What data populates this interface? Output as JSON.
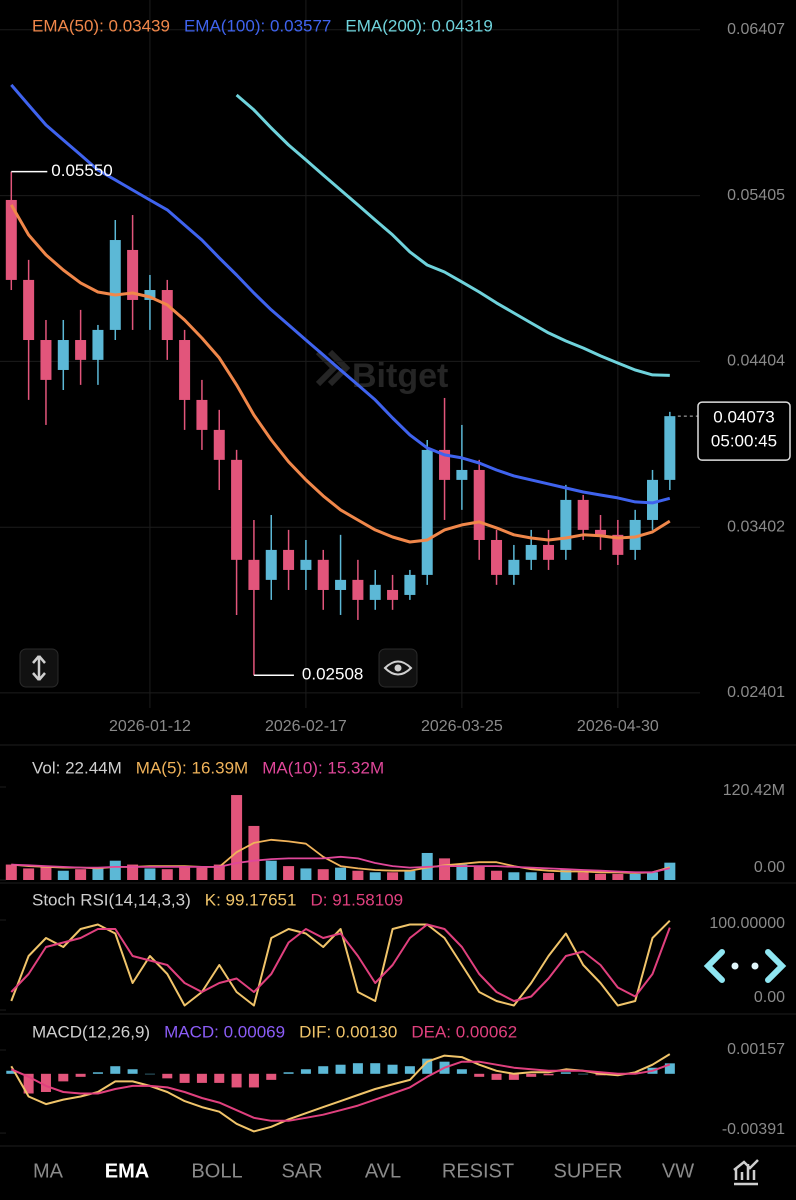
{
  "chart_data": [
    {
      "type": "candlestick",
      "categories": [
        null,
        null,
        null,
        null,
        null,
        null,
        null,
        null,
        "2026-01-12",
        null,
        null,
        null,
        null,
        null,
        null,
        null,
        null,
        "2026-02-17",
        null,
        null,
        null,
        null,
        null,
        null,
        null,
        null,
        "2026-03-25",
        null,
        null,
        null,
        null,
        null,
        null,
        null,
        null,
        "2026-04-30",
        null,
        null,
        null
      ],
      "open": [
        0.05379,
        0.04896,
        0.04533,
        0.04352,
        0.04533,
        0.04413,
        0.04594,
        0.05077,
        0.04775,
        0.04835,
        0.04533,
        0.04171,
        0.0399,
        0.03809,
        0.03205,
        0.03084,
        0.03265,
        0.03144,
        0.03205,
        0.03023,
        0.03084,
        0.02963,
        0.03023,
        0.02993,
        0.03114,
        0.03869,
        0.03688,
        0.03748,
        0.03325,
        0.03114,
        0.03205,
        0.03295,
        0.03265,
        0.03567,
        0.03386,
        0.03356,
        0.03265,
        0.03446,
        0.03688
      ],
      "high": [
        0.0555,
        0.05017,
        0.04654,
        0.04654,
        0.04715,
        0.04624,
        0.05258,
        0.05288,
        0.04926,
        0.04896,
        0.04594,
        0.04292,
        0.04111,
        0.03869,
        0.03446,
        0.03476,
        0.03386,
        0.03325,
        0.03265,
        0.03356,
        0.03205,
        0.03144,
        0.03114,
        0.03144,
        0.03929,
        0.04183,
        0.0402,
        0.03809,
        0.03386,
        0.03295,
        0.03386,
        0.03386,
        0.03658,
        0.03597,
        0.03476,
        0.03446,
        0.03507,
        0.03748,
        0.04099
      ],
      "low": [
        0.04835,
        0.04171,
        0.0402,
        0.04231,
        0.04262,
        0.04262,
        0.04533,
        0.04594,
        0.04594,
        0.04413,
        0.0399,
        0.03869,
        0.03627,
        0.02872,
        0.02508,
        0.02963,
        0.03023,
        0.03023,
        0.02903,
        0.02872,
        0.02842,
        0.02903,
        0.02903,
        0.02963,
        0.03054,
        0.03446,
        0.03507,
        0.03205,
        0.03054,
        0.03054,
        0.03144,
        0.03144,
        0.03205,
        0.03325,
        0.03265,
        0.03174,
        0.03205,
        0.03386,
        0.03627
      ],
      "close": [
        0.04896,
        0.04533,
        0.04292,
        0.04533,
        0.04413,
        0.04594,
        0.05137,
        0.04775,
        0.04835,
        0.04533,
        0.04171,
        0.0399,
        0.03809,
        0.03205,
        0.03023,
        0.03265,
        0.03144,
        0.03205,
        0.03023,
        0.03084,
        0.02963,
        0.03054,
        0.02963,
        0.03114,
        0.03869,
        0.03688,
        0.03748,
        0.03325,
        0.03114,
        0.03205,
        0.03295,
        0.03205,
        0.03567,
        0.03386,
        0.03356,
        0.03235,
        0.03446,
        0.03688,
        0.04073
      ],
      "up_color": "#5cb8d6",
      "down_color": "#e2557b",
      "series": [
        {
          "name": "EMA(50): 0.03439",
          "color": "#f0874a",
          "values": [
            0.05349,
            0.05168,
            0.05047,
            0.04956,
            0.04878,
            0.04823,
            0.04805,
            0.04817,
            0.04793,
            0.04745,
            0.04654,
            0.04545,
            0.04425,
            0.04262,
            0.0408,
            0.03929,
            0.03797,
            0.03688,
            0.03591,
            0.03507,
            0.03446,
            0.03386,
            0.03343,
            0.03313,
            0.03325,
            0.03386,
            0.03416,
            0.03434,
            0.03398,
            0.03356,
            0.03337,
            0.03325,
            0.03337,
            0.03356,
            0.0335,
            0.03337,
            0.03343,
            0.03374,
            0.03439
          ]
        },
        {
          "name": "EMA(100): 0.03577",
          "color": "#3f63ee",
          "values": [
            0.06074,
            0.05953,
            0.05832,
            0.05741,
            0.05651,
            0.0556,
            0.055,
            0.05439,
            0.05379,
            0.05319,
            0.05228,
            0.05137,
            0.05029,
            0.04926,
            0.04817,
            0.04715,
            0.04624,
            0.04533,
            0.04443,
            0.04352,
            0.04262,
            0.04171,
            0.04062,
            0.0396,
            0.03881,
            0.03839,
            0.03821,
            0.0379,
            0.03748,
            0.03712,
            0.03688,
            0.03664,
            0.03639,
            0.03615,
            0.03597,
            0.03579,
            0.03555,
            0.03549,
            0.03577
          ]
        },
        {
          "name": "EMA(200): 0.04319",
          "color": "#6fd3dc",
          "values": [
            null,
            null,
            null,
            null,
            null,
            null,
            null,
            null,
            null,
            null,
            null,
            null,
            null,
            0.06013,
            0.05923,
            0.05814,
            0.05711,
            0.05621,
            0.0553,
            0.05439,
            0.05349,
            0.05258,
            0.05168,
            0.05065,
            0.04986,
            0.04944,
            0.04884,
            0.04823,
            0.04757,
            0.04696,
            0.04636,
            0.04576,
            0.04527,
            0.04485,
            0.04437,
            0.04394,
            0.04352,
            0.04322,
            0.04319
          ]
        }
      ],
      "ylim": [
        0.0231,
        0.06587
      ],
      "yticks": [
        0.06407,
        0.05405,
        0.04404,
        0.03402,
        0.02401
      ],
      "grid": true,
      "extreme_labels": {
        "high": "0.05550",
        "low": "0.02508"
      },
      "last_price": {
        "label": "0.04073",
        "countdown": "05:00:45"
      }
    },
    {
      "type": "bar",
      "title": "Vol: 22.44M",
      "values": [
        20,
        15,
        18,
        12,
        14,
        16,
        25,
        20,
        15,
        14,
        18,
        16,
        20,
        110,
        70,
        25,
        18,
        15,
        14,
        16,
        12,
        10,
        10,
        12,
        35,
        28,
        20,
        18,
        12,
        10,
        10,
        9,
        14,
        10,
        8,
        8,
        8,
        10,
        22.44
      ],
      "series": [
        {
          "name": "MA(5): 16.39M",
          "color": "#f0b35a",
          "values": [
            20,
            18,
            17,
            16,
            16,
            15,
            17,
            17,
            18,
            18,
            18,
            17,
            17,
            36,
            48,
            52,
            50,
            47,
            30,
            18,
            15,
            13,
            12,
            12,
            16,
            19,
            21,
            23,
            23,
            18,
            14,
            12,
            11,
            11,
            10,
            10,
            9,
            10,
            16.39
          ]
        },
        {
          "name": "MA(10): 15.32M",
          "color": "#e0479a",
          "values": [
            20,
            19,
            18,
            17,
            16,
            16,
            17,
            17,
            17,
            17,
            17,
            17,
            17,
            22,
            25,
            27,
            28,
            28,
            28,
            30,
            28,
            22,
            18,
            16,
            17,
            18,
            18,
            18,
            18,
            17,
            16,
            15,
            14,
            13,
            12,
            11,
            10,
            10,
            15.32
          ]
        }
      ],
      "ylim": [
        0,
        120.42
      ],
      "yticks": [
        {
          "value": 120.42,
          "label": "120.42M"
        },
        {
          "value": 0,
          "label": "0.00"
        }
      ]
    },
    {
      "type": "line",
      "title": "Stoch RSI(14,14,3,3)",
      "series": [
        {
          "name": "K: 99.17651",
          "color": "#f0c46a",
          "values": [
            10,
            60,
            80,
            70,
            90,
            95,
            85,
            30,
            60,
            40,
            5,
            20,
            50,
            20,
            5,
            80,
            90,
            85,
            70,
            90,
            20,
            10,
            90,
            95,
            95,
            80,
            50,
            20,
            10,
            5,
            30,
            60,
            85,
            50,
            30,
            5,
            10,
            80,
            99.17651
          ]
        },
        {
          "name": "D: 91.58109",
          "color": "#e0407e",
          "values": [
            20,
            40,
            70,
            75,
            80,
            90,
            90,
            60,
            55,
            50,
            30,
            20,
            30,
            35,
            20,
            40,
            75,
            90,
            80,
            85,
            60,
            30,
            50,
            80,
            95,
            90,
            70,
            40,
            20,
            10,
            15,
            35,
            60,
            65,
            50,
            25,
            15,
            40,
            91.58109
          ]
        }
      ],
      "ylim": [
        0,
        100
      ],
      "yticks": [
        {
          "value": 100,
          "label": "100.00000"
        },
        {
          "value": 0,
          "label": "0.00"
        }
      ]
    },
    {
      "type": "macd",
      "title": "MACD(12,26,9)",
      "histogram_name": "MACD: 0.00069",
      "histogram_color": "#8b5cf6",
      "values": [
        0.0002,
        -0.0013,
        -0.0012,
        -0.0005,
        -0.0002,
        0.0001,
        0.0005,
        0.0003,
        0,
        -0.0003,
        -0.0006,
        -0.0006,
        -0.0006,
        -0.0009,
        -0.0009,
        -0.0004,
        0.0001,
        0.0003,
        0.0005,
        0.0006,
        0.0007,
        0.0007,
        0.0006,
        0.0005,
        0.001,
        0.0008,
        0.0003,
        -0.0002,
        -0.0004,
        -0.0004,
        -0.0002,
        -0.0001,
        0.0001,
        0,
        -0.0001,
        -0.0001,
        0.0001,
        0.0004,
        0.00069
      ],
      "series": [
        {
          "name": "DIF: 0.00130",
          "color": "#f0c46a",
          "values": [
            0.0005,
            -0.0015,
            -0.002,
            -0.0017,
            -0.0015,
            -0.0012,
            -0.0005,
            -0.0005,
            -0.0008,
            -0.0012,
            -0.0018,
            -0.0022,
            -0.0025,
            -0.0033,
            -0.0038,
            -0.0035,
            -0.003,
            -0.0026,
            -0.0022,
            -0.0018,
            -0.0014,
            -0.001,
            -0.0007,
            -0.0004,
            0.0008,
            0.0012,
            0.0011,
            0.0006,
            0.0002,
            0,
            0.0001,
            0.0001,
            0.0003,
            0.0002,
            0,
            -0.0001,
            0.0001,
            0.0006,
            0.0013
          ]
        },
        {
          "name": "DEA: 0.00062",
          "color": "#e0407e",
          "values": [
            0.0003,
            -0.0002,
            -0.0008,
            -0.0012,
            -0.0013,
            -0.0013,
            -0.001,
            -0.0008,
            -0.0008,
            -0.0009,
            -0.0012,
            -0.0016,
            -0.0019,
            -0.0024,
            -0.0029,
            -0.0031,
            -0.0031,
            -0.0029,
            -0.0027,
            -0.0024,
            -0.0021,
            -0.0017,
            -0.0013,
            -0.0009,
            -0.0002,
            0.0004,
            0.0008,
            0.0008,
            0.0006,
            0.0004,
            0.0003,
            0.0002,
            0.0002,
            0.0002,
            0.0001,
            0,
            0,
            0.0002,
            0.00062
          ]
        }
      ],
      "ylim": [
        -0.0045,
        0.00322
      ],
      "yticks": [
        0.00157,
        -0.00391
      ]
    }
  ],
  "watermark": "Bitget",
  "tabs": [
    "MA",
    "EMA",
    "BOLL",
    "SAR",
    "AVL",
    "RESIST",
    "SUPER",
    "VW"
  ],
  "active_tab": "EMA"
}
